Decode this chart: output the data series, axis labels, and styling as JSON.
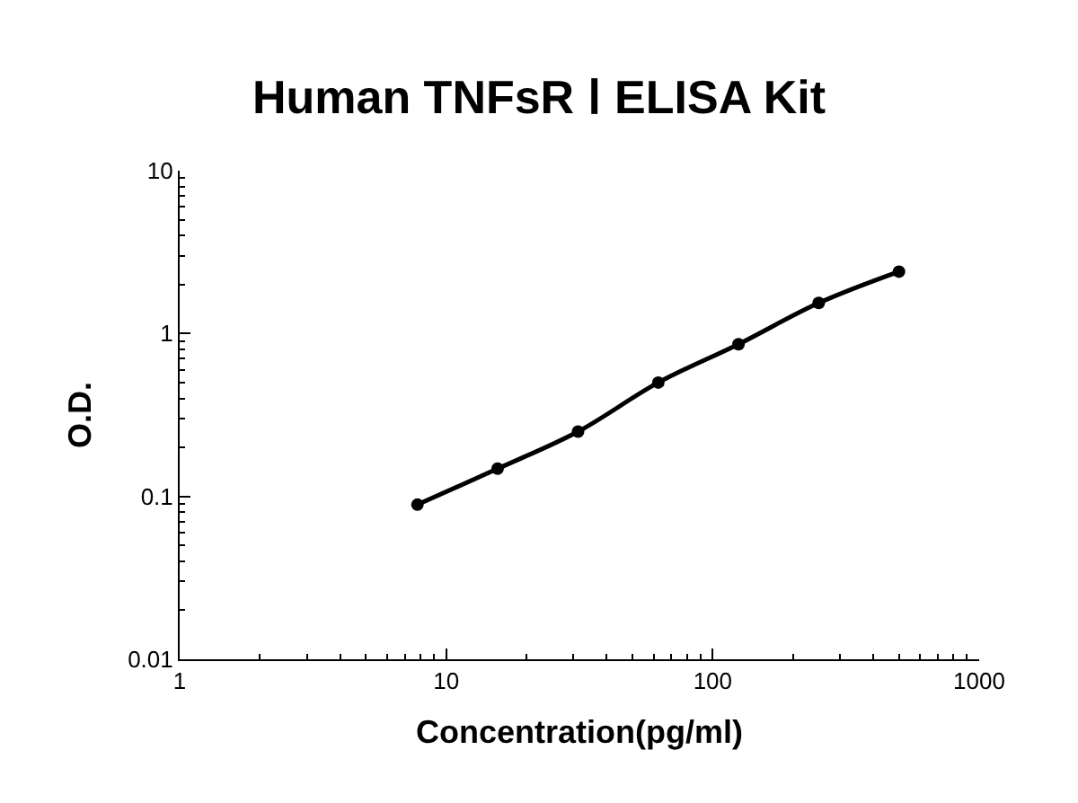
{
  "chart_data": {
    "type": "line",
    "title": "Human TNFsR Ⅰ ELISA Kit",
    "xlabel": "Concentration(pg/ml)",
    "ylabel": "O.D.",
    "x": [
      7.8,
      15.6,
      31.25,
      62.5,
      125,
      250,
      500
    ],
    "series": [
      {
        "color": "#000000",
        "values": [
          0.089,
          0.148,
          0.25,
          0.5,
          0.86,
          1.54,
          2.4
        ]
      }
    ],
    "log": "xy",
    "xlim": [
      1,
      1000
    ],
    "ylim": [
      0.01,
      10
    ],
    "xticks": [
      1,
      10,
      100,
      1000
    ],
    "yticks": [
      0.01,
      0.1,
      1,
      10
    ],
    "marker": "circle",
    "line_style": "solid"
  }
}
